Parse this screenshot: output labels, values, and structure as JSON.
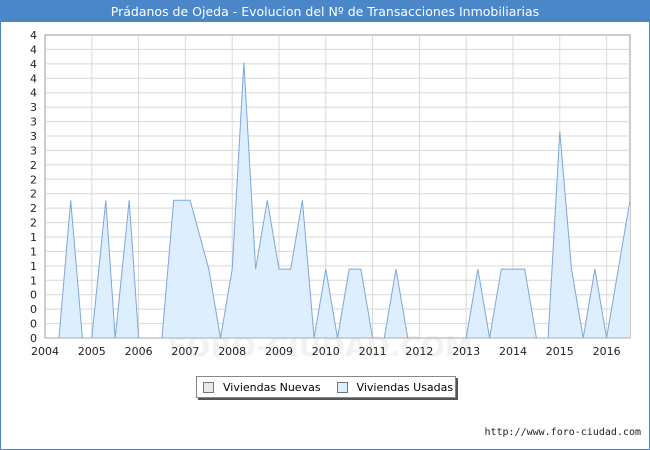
{
  "header": {
    "title": "Prádanos de Ojeda - Evolucion del Nº de Transacciones Inmobiliarias"
  },
  "watermark": "FORO-CIUDAD.COM",
  "source": "http://www.foro-ciudad.com",
  "chart_data": {
    "type": "area",
    "title": "Prádanos de Ojeda - Evolucion del Nº de Transacciones Inmobiliarias",
    "xlabel": "",
    "ylabel": "",
    "x_ticks": [
      "2004",
      "2005",
      "2006",
      "2007",
      "2008",
      "2009",
      "2010",
      "2011",
      "2012",
      "2013",
      "2014",
      "2015",
      "2016"
    ],
    "y_ticks": [
      "0",
      "0",
      "0",
      "0",
      "1",
      "1",
      "1",
      "1",
      "2",
      "2",
      "2",
      "2",
      "2",
      "3",
      "3",
      "3",
      "3",
      "4",
      "4",
      "4",
      "4",
      "4"
    ],
    "xlim": [
      2004,
      2016.5
    ],
    "ylim": [
      0,
      4.4
    ],
    "grid": true,
    "legend_position": "bottom-center",
    "series": [
      {
        "name": "Viviendas Nuevas",
        "color": "#e8e8e8",
        "x": [
          2004.0,
          2016.5
        ],
        "y": [
          0,
          0
        ]
      },
      {
        "name": "Viviendas Usadas",
        "color": "#ddeeff",
        "x": [
          2004.0,
          2004.3,
          2004.55,
          2004.8,
          2005.0,
          2005.3,
          2005.5,
          2005.8,
          2006.0,
          2006.25,
          2006.5,
          2006.75,
          2006.95,
          2007.1,
          2007.5,
          2007.75,
          2008.0,
          2008.25,
          2008.5,
          2008.75,
          2009.0,
          2009.25,
          2009.5,
          2009.75,
          2010.0,
          2010.25,
          2010.5,
          2010.75,
          2011.0,
          2011.25,
          2011.5,
          2011.75,
          2012.0,
          2012.25,
          2012.5,
          2012.75,
          2013.0,
          2013.25,
          2013.5,
          2013.75,
          2014.0,
          2014.25,
          2014.5,
          2014.75,
          2015.0,
          2015.25,
          2015.5,
          2015.75,
          2016.0,
          2016.25,
          2016.5
        ],
        "y": [
          0,
          0,
          2,
          0,
          0,
          2,
          0,
          2,
          0,
          0,
          0,
          2,
          2,
          2,
          1,
          0,
          1,
          4,
          1,
          2,
          1,
          1,
          2,
          0,
          1,
          0,
          1,
          1,
          0,
          0,
          1,
          0,
          0,
          0,
          0,
          0,
          0,
          1,
          0,
          1,
          1,
          1,
          0,
          0,
          3,
          1,
          0,
          1,
          0,
          1,
          2
        ]
      }
    ]
  }
}
